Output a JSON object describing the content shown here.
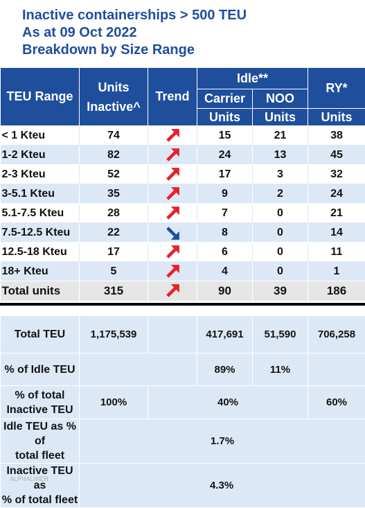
{
  "title": {
    "line1": "Inactive containerships > 500 TEU",
    "line2": "As at 09 Oct 2022",
    "line3": "Breakdown by Size Range"
  },
  "header": {
    "teu_range": "TEU Range",
    "units_inactive_1": "Units",
    "units_inactive_2": "Inactive^",
    "trend": "Trend",
    "idle": "Idle**",
    "carrier": "Carrier",
    "noo": "NOO",
    "ry": "RY*",
    "units": "Units"
  },
  "colors": {
    "up_arrow": "#e8202a",
    "down_arrow": "#1f4e9c",
    "header_bg": "#1f4e9c"
  },
  "rows": [
    {
      "range": "< 1 Kteu",
      "inactive": "74",
      "trend": "up",
      "carrier": "15",
      "noo": "21",
      "ry": "38"
    },
    {
      "range": "1-2 Kteu",
      "inactive": "82",
      "trend": "up",
      "carrier": "24",
      "noo": "13",
      "ry": "45"
    },
    {
      "range": "2-3 Kteu",
      "inactive": "52",
      "trend": "up",
      "carrier": "17",
      "noo": "3",
      "ry": "32"
    },
    {
      "range": "3-5.1 Kteu",
      "inactive": "35",
      "trend": "up",
      "carrier": "9",
      "noo": "2",
      "ry": "24"
    },
    {
      "range": "5.1-7.5 Kteu",
      "inactive": "28",
      "trend": "up",
      "carrier": "7",
      "noo": "0",
      "ry": "21"
    },
    {
      "range": "7.5-12.5 Kteu",
      "inactive": "22",
      "trend": "down",
      "carrier": "8",
      "noo": "0",
      "ry": "14"
    },
    {
      "range": "12.5-18 Kteu",
      "inactive": "17",
      "trend": "up",
      "carrier": "6",
      "noo": "0",
      "ry": "11"
    },
    {
      "range": "18+ Kteu",
      "inactive": "5",
      "trend": "up",
      "carrier": "4",
      "noo": "0",
      "ry": "1"
    }
  ],
  "total": {
    "range": "Total units",
    "inactive": "315",
    "trend": "up",
    "carrier": "90",
    "noo": "39",
    "ry": "186"
  },
  "summary": {
    "total_teu": {
      "label": "Total TEU",
      "inactive": "1,175,539",
      "carrier": "417,691",
      "noo": "51,590",
      "ry": "706,258"
    },
    "pct_idle": {
      "label": "% of Idle TEU",
      "carrier": "89%",
      "noo": "11%"
    },
    "pct_total_inactive": {
      "label1": "% of total",
      "label2": "Inactive TEU",
      "inactive": "100%",
      "idle": "40%",
      "ry": "60%"
    },
    "idle_pct_fleet": {
      "label1": "Idle TEU as % of",
      "label2": "total fleet",
      "value": "1.7%"
    },
    "inactive_pct_fleet": {
      "label1": "Inactive TEU as",
      "label2": "% of total fleet",
      "value": "4.3%"
    }
  },
  "watermark": "ALPHALINER"
}
